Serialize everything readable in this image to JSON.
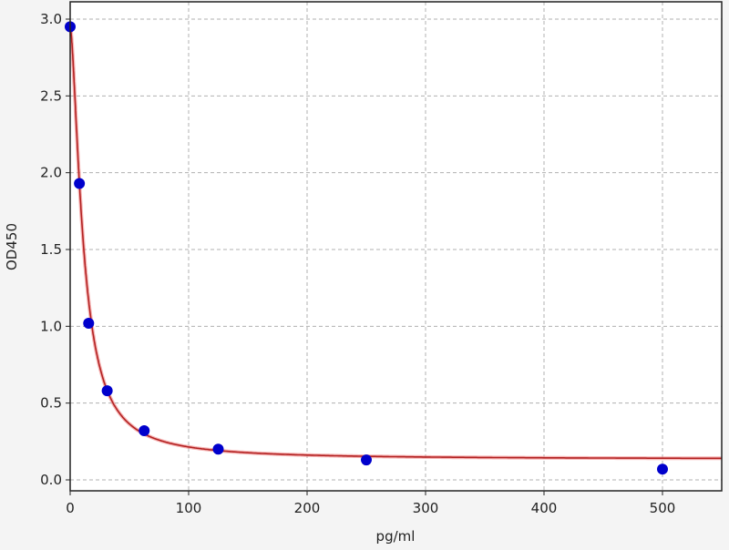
{
  "chart_data": {
    "type": "scatter",
    "title": "",
    "xlabel": "pg/ml",
    "ylabel": "OD450",
    "xlim": [
      0,
      550
    ],
    "ylim": [
      -0.08,
      3.1
    ],
    "xticks": [
      "0",
      "100",
      "200",
      "300",
      "400",
      "500"
    ],
    "yticks": [
      "0.0",
      "0.5",
      "1.0",
      "1.5",
      "2.0",
      "2.5",
      "3.0"
    ],
    "grid": true,
    "legend": "none",
    "series": [
      {
        "kind": "points",
        "color": "#0000cc",
        "x": [
          0,
          7.8,
          15.6,
          31.25,
          62.5,
          125,
          250,
          500
        ],
        "y": [
          2.95,
          1.93,
          1.02,
          0.58,
          0.32,
          0.2,
          0.13,
          0.07
        ]
      },
      {
        "kind": "fitted-curve",
        "color": "#b22222"
      }
    ]
  }
}
